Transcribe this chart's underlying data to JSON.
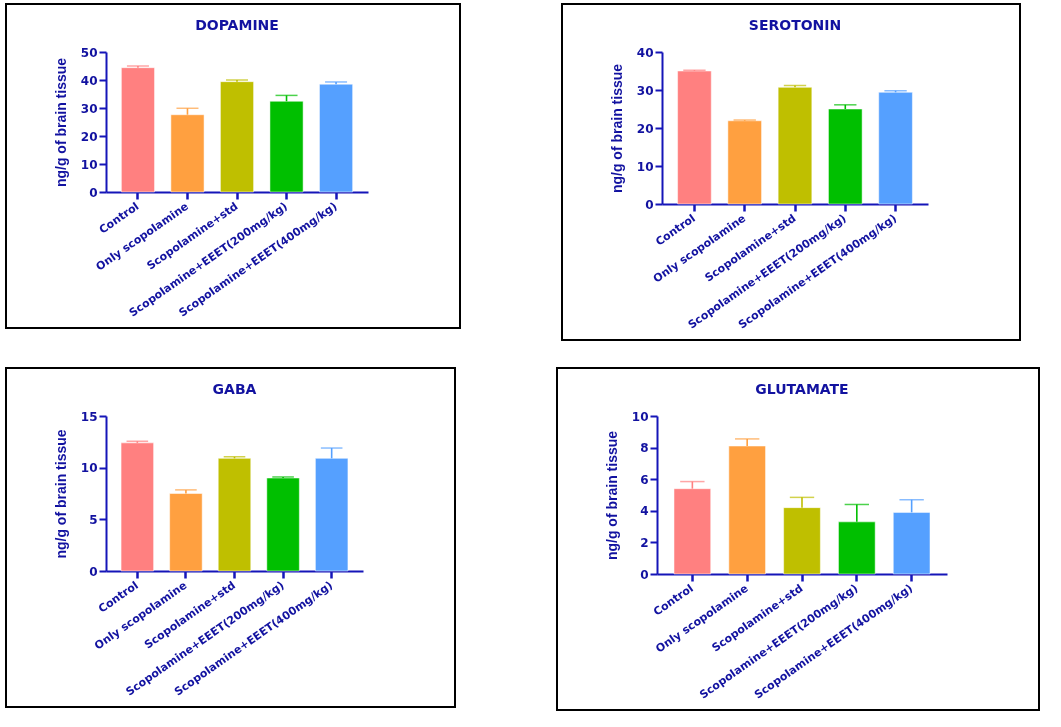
{
  "chart_data": [
    {
      "type": "bar",
      "title": "DOPAMINE",
      "ylabel": "ng/g of brain tissue",
      "categories": [
        "Control",
        "Only scopolamine",
        "Scopolamine+std",
        "Scopolamine+EEET(200mg/kg)",
        "Scopolamine+EEET(400mg/kg)"
      ],
      "values": [
        44.4,
        27.6,
        39.4,
        32.4,
        38.5
      ],
      "errors": [
        [
          44.4,
          45.0
        ],
        [
          27.6,
          29.9
        ],
        [
          39.4,
          40.0
        ],
        [
          32.4,
          34.5
        ],
        [
          38.5,
          39.3
        ]
      ],
      "colors": [
        "#ff8080",
        "#ffa040",
        "#bfbf00",
        "#00bf00",
        "#55a0ff"
      ],
      "ylim": [
        0,
        50
      ],
      "yticks": [
        0,
        10,
        20,
        30,
        40,
        50
      ]
    },
    {
      "type": "bar",
      "title": "SEROTONIN",
      "ylabel": "ng/g of brain tissue",
      "categories": [
        "Control",
        "Only scopolamine",
        "Scopolamine+std",
        "Scopolamine+EEET(200mg/kg)",
        "Scopolamine+EEET(400mg/kg)"
      ],
      "values": [
        35.0,
        21.9,
        30.7,
        25.0,
        29.4
      ],
      "errors": [
        [
          35.0,
          35.2
        ],
        [
          21.9,
          22.1
        ],
        [
          30.7,
          31.2
        ],
        [
          25.0,
          26.1
        ],
        [
          29.4,
          29.8
        ]
      ],
      "colors": [
        "#ff8080",
        "#ffa040",
        "#bfbf00",
        "#00bf00",
        "#55a0ff"
      ],
      "ylim": [
        0,
        40
      ],
      "yticks": [
        0,
        10,
        20,
        30,
        40
      ]
    },
    {
      "type": "bar",
      "title": "GABA",
      "ylabel": "ng/g of brain tissue",
      "categories": [
        "Control",
        "Only scopolamine",
        "Scopolamine+std",
        "Scopolamine+EEET(200mg/kg)",
        "Scopolamine+EEET(400mg/kg)"
      ],
      "values": [
        12.4,
        7.5,
        10.9,
        9.0,
        10.9
      ],
      "errors": [
        [
          12.4,
          12.55
        ],
        [
          7.5,
          7.85
        ],
        [
          10.9,
          11.05
        ],
        [
          9.0,
          9.1
        ],
        [
          10.9,
          11.9
        ]
      ],
      "colors": [
        "#ff8080",
        "#ffa040",
        "#bfbf00",
        "#00bf00",
        "#55a0ff"
      ],
      "ylim": [
        0,
        15
      ],
      "yticks": [
        0,
        5,
        10,
        15
      ]
    },
    {
      "type": "bar",
      "title": "GLUTAMATE",
      "ylabel": "ng/g of brain tissue",
      "categories": [
        "Control",
        "Only scopolamine",
        "Scopolamine+std",
        "Scopolamine+EEET(200mg/kg)",
        "Scopolamine+EEET(400mg/kg)"
      ],
      "values": [
        5.4,
        8.1,
        4.2,
        3.3,
        3.9
      ],
      "errors": [
        [
          5.4,
          5.85
        ],
        [
          8.1,
          8.55
        ],
        [
          4.2,
          4.85
        ],
        [
          3.3,
          4.4
        ],
        [
          3.9,
          4.7
        ]
      ],
      "colors": [
        "#ff8080",
        "#ffa040",
        "#bfbf00",
        "#00bf00",
        "#55a0ff"
      ],
      "ylim": [
        0,
        10
      ],
      "yticks": [
        0,
        2,
        4,
        6,
        8,
        10
      ]
    }
  ]
}
